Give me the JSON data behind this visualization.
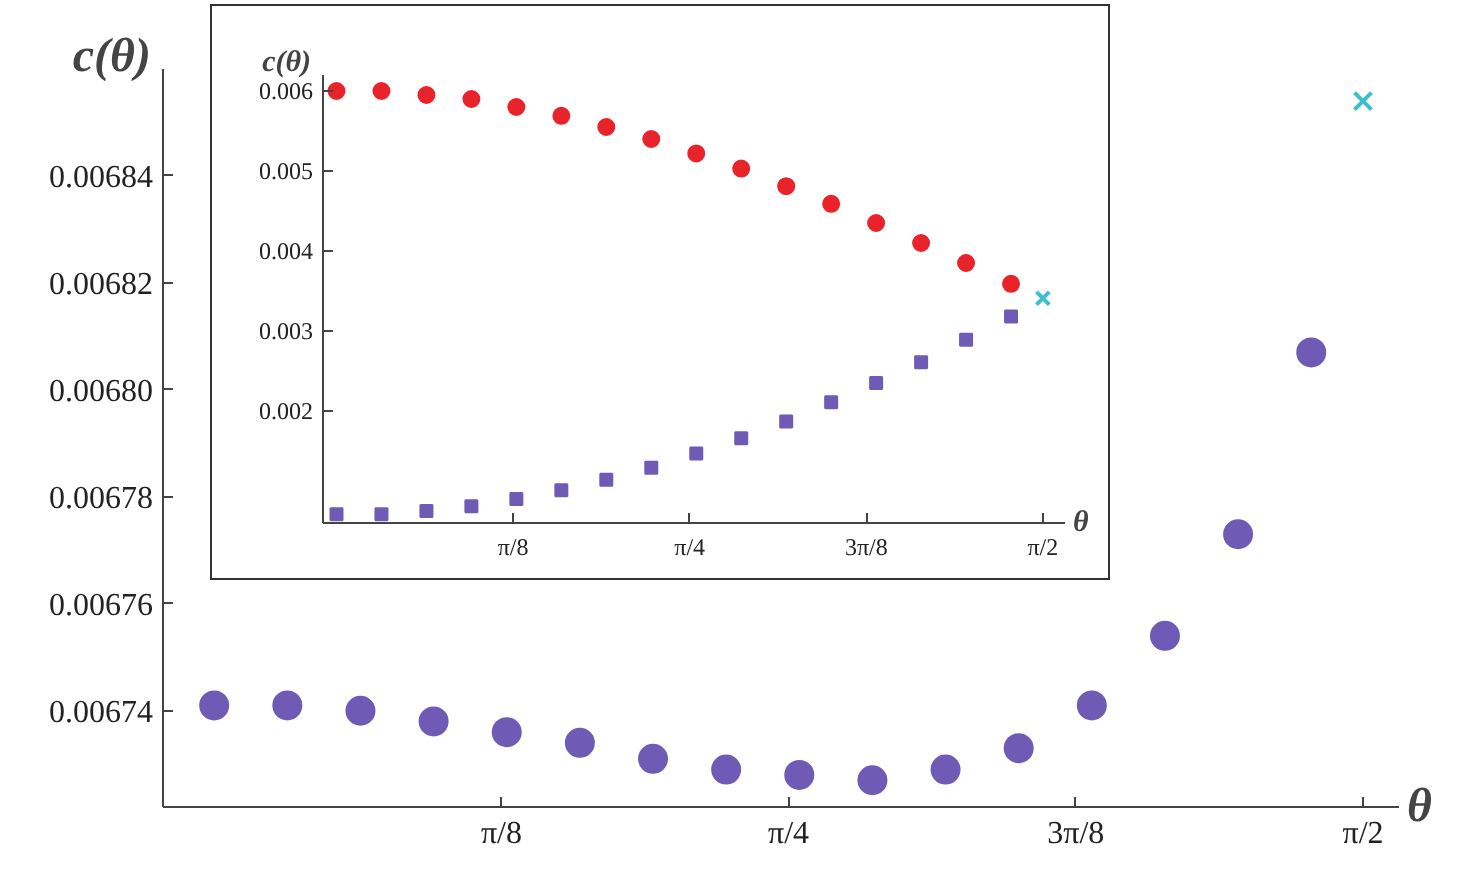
{
  "chart_data": [
    {
      "type": "scatter",
      "xlabel": "θ",
      "ylabel": "c(θ)",
      "xlim": [
        -0.07,
        1.62
      ],
      "ylim": [
        0.006722,
        0.00686
      ],
      "xticks": [
        {
          "value": 0.3927,
          "label": "π/8"
        },
        {
          "value": 0.7854,
          "label": "π/4"
        },
        {
          "value": 1.1781,
          "label": "3π/8"
        },
        {
          "value": 1.5708,
          "label": "π/2"
        }
      ],
      "yticks": [
        0.00674,
        0.00676,
        0.00678,
        {
          "value": 0.0068,
          "label": "0.00680"
        },
        0.00682,
        0.00684
      ],
      "grid": false,
      "series": [
        {
          "color": "#6f5bb5",
          "marker": "circle",
          "x": [
            0,
            0.1,
            0.2,
            0.3,
            0.4,
            0.5,
            0.6,
            0.7,
            0.8,
            0.9,
            1.0,
            1.1,
            1.2,
            1.3,
            1.4,
            1.5
          ],
          "values": [
            0.006741,
            0.006741,
            0.00674,
            0.006738,
            0.006736,
            0.006734,
            0.006731,
            0.006729,
            0.006728,
            0.006727,
            0.006729,
            0.006733,
            0.006741,
            0.006754,
            0.006773,
            0.006807
          ]
        },
        {
          "color": "#3cc0cc",
          "marker": "cross",
          "x": [
            1.5708
          ],
          "values": [
            0.006854
          ]
        }
      ]
    },
    {
      "type": "scatter",
      "xlabel": "θ",
      "ylabel": "c(θ)",
      "xlim": [
        -0.03,
        1.62
      ],
      "ylim": [
        0.0006,
        0.0062
      ],
      "xticks": [
        {
          "value": 0.3927,
          "label": "π/8"
        },
        {
          "value": 0.7854,
          "label": "π/4"
        },
        {
          "value": 1.1781,
          "label": "3π/8"
        },
        {
          "value": 1.5708,
          "label": "π/2"
        }
      ],
      "yticks": [
        0.002,
        0.003,
        0.004,
        0.005,
        0.006
      ],
      "grid": false,
      "series": [
        {
          "color": "#e8242a",
          "marker": "circle",
          "x": [
            0,
            0.1,
            0.2,
            0.3,
            0.4,
            0.5,
            0.6,
            0.7,
            0.8,
            0.9,
            1.0,
            1.1,
            1.2,
            1.3,
            1.4,
            1.5
          ],
          "values": [
            0.006,
            0.006,
            0.00595,
            0.0059,
            0.0058,
            0.00569,
            0.00555,
            0.0054,
            0.00522,
            0.00503,
            0.00481,
            0.00459,
            0.00435,
            0.0041,
            0.00385,
            0.00359
          ]
        },
        {
          "color": "#6f5bb5",
          "marker": "square",
          "x": [
            0,
            0.1,
            0.2,
            0.3,
            0.4,
            0.5,
            0.6,
            0.7,
            0.8,
            0.9,
            1.0,
            1.1,
            1.2,
            1.3,
            1.4,
            1.5
          ],
          "values": [
            0.00071,
            0.00071,
            0.00075,
            0.00081,
            0.0009,
            0.00101,
            0.00114,
            0.00129,
            0.00147,
            0.00166,
            0.00187,
            0.00211,
            0.00235,
            0.00261,
            0.00289,
            0.00318
          ]
        },
        {
          "color": "#3cc0cc",
          "marker": "cross",
          "x": [
            1.5708
          ],
          "values": [
            0.00341
          ]
        }
      ]
    }
  ]
}
